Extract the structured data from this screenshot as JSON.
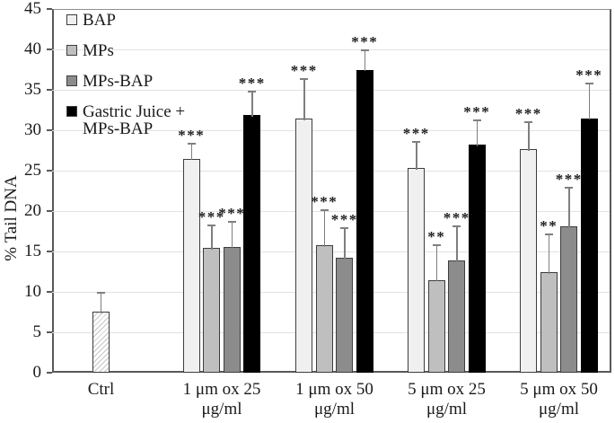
{
  "chart_data": {
    "type": "bar",
    "title": "",
    "xlabel": "",
    "ylabel": "% Tail DNA",
    "ylim": [
      0,
      45
    ],
    "yticks": [
      0,
      5,
      10,
      15,
      20,
      25,
      30,
      35,
      40,
      45
    ],
    "grid": "horizontal",
    "legend_position": "top-left-inside",
    "series": [
      {
        "name": "Ctrl",
        "fill": "#ffffff",
        "pattern": "diagonal-hatch",
        "in_legend": false
      },
      {
        "name": "BAP",
        "fill": "#f0f0f0",
        "pattern": "none",
        "in_legend": true
      },
      {
        "name": "MPs",
        "fill": "#bfbfbf",
        "pattern": "none",
        "in_legend": true
      },
      {
        "name": "MPs-BAP",
        "fill": "#8c8c8c",
        "pattern": "none",
        "in_legend": true
      },
      {
        "name": "Gastric Juice + MPs-BAP",
        "fill": "#000000",
        "pattern": "none",
        "in_legend": true
      }
    ],
    "legend_labels": [
      [
        "BAP"
      ],
      [
        "MPs"
      ],
      [
        "MPs-BAP"
      ],
      [
        "Gastric Juice +",
        "MPs-BAP"
      ]
    ],
    "error_bars": "upper, gray caps",
    "groups": [
      {
        "label": [
          "Ctrl"
        ],
        "bars": [
          {
            "series": "Ctrl",
            "value": 7.6,
            "err": 2.3,
            "sig": ""
          }
        ]
      },
      {
        "label": [
          "1 μm ox 25",
          "μg/ml"
        ],
        "bars": [
          {
            "series": "BAP",
            "value": 26.5,
            "err": 1.8,
            "sig": "***"
          },
          {
            "series": "MPs",
            "value": 15.4,
            "err": 2.8,
            "sig": "***"
          },
          {
            "series": "MPs-BAP",
            "value": 15.6,
            "err": 3.1,
            "sig": "***"
          },
          {
            "series": "Gastric Juice + MPs-BAP",
            "value": 31.9,
            "err": 2.9,
            "sig": "***"
          }
        ]
      },
      {
        "label": [
          "1 μm ox 50",
          "μg/ml"
        ],
        "bars": [
          {
            "series": "BAP",
            "value": 31.4,
            "err": 4.9,
            "sig": "***"
          },
          {
            "series": "MPs",
            "value": 15.8,
            "err": 4.3,
            "sig": "***"
          },
          {
            "series": "MPs-BAP",
            "value": 14.2,
            "err": 3.7,
            "sig": "***"
          },
          {
            "series": "Gastric Juice + MPs-BAP",
            "value": 37.5,
            "err": 2.4,
            "sig": "***"
          }
        ]
      },
      {
        "label": [
          "5 μm ox 25",
          "μg/ml"
        ],
        "bars": [
          {
            "series": "BAP",
            "value": 25.3,
            "err": 3.3,
            "sig": "***"
          },
          {
            "series": "MPs",
            "value": 11.5,
            "err": 4.3,
            "sig": "**"
          },
          {
            "series": "MPs-BAP",
            "value": 13.9,
            "err": 4.2,
            "sig": "***"
          },
          {
            "series": "Gastric Juice + MPs-BAP",
            "value": 28.2,
            "err": 3.0,
            "sig": "***"
          }
        ]
      },
      {
        "label": [
          "5 μm ox 50",
          "μg/ml"
        ],
        "bars": [
          {
            "series": "BAP",
            "value": 27.7,
            "err": 3.3,
            "sig": "***"
          },
          {
            "series": "MPs",
            "value": 12.4,
            "err": 4.7,
            "sig": "**"
          },
          {
            "series": "MPs-BAP",
            "value": 18.1,
            "err": 4.8,
            "sig": "***"
          },
          {
            "series": "Gastric Juice + MPs-BAP",
            "value": 31.5,
            "err": 4.3,
            "sig": "***"
          }
        ]
      }
    ]
  }
}
